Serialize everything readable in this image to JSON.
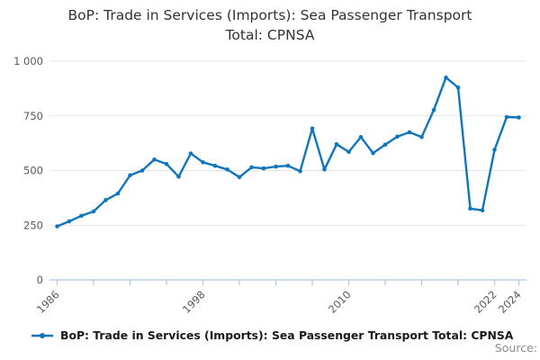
{
  "title": {
    "line1": "BoP: Trade in Services (Imports): Sea Passenger Transport",
    "line2": "Total: CPNSA"
  },
  "legend": {
    "label": "BoP: Trade in Services (Imports): Sea Passenger Transport Total: CPNSA"
  },
  "source_label": "Source:",
  "colors": {
    "series": "#1076bc",
    "axis": "#b4c3d6",
    "grid": "#e4e4e4",
    "tick_text": "#595959",
    "title_text": "#333333",
    "legend_text": "#1a1a1a",
    "source_text": "#8c8c8c"
  },
  "chart_data": {
    "type": "line",
    "title": "BoP: Trade in Services (Imports): Sea Passenger Transport Total: CPNSA",
    "xlabel": "",
    "ylabel": "",
    "x": [
      1986,
      1987,
      1988,
      1989,
      1990,
      1991,
      1992,
      1993,
      1994,
      1995,
      1996,
      1997,
      1998,
      1999,
      2000,
      2001,
      2002,
      2003,
      2004,
      2005,
      2006,
      2007,
      2008,
      2009,
      2010,
      2011,
      2012,
      2013,
      2014,
      2015,
      2016,
      2017,
      2018,
      2019,
      2020,
      2021,
      2022,
      2023,
      2024
    ],
    "series": [
      {
        "name": "BoP: Trade in Services (Imports): Sea Passenger Transport Total: CPNSA",
        "values": [
          245,
          268,
          293,
          313,
          365,
          395,
          478,
          500,
          550,
          530,
          472,
          578,
          538,
          522,
          505,
          470,
          515,
          510,
          518,
          522,
          497,
          692,
          505,
          620,
          585,
          653,
          580,
          618,
          655,
          675,
          653,
          777,
          925,
          880,
          326,
          318,
          595,
          745,
          743
        ]
      }
    ],
    "xlim": [
      1986,
      2024
    ],
    "ylim": [
      0,
      1000
    ],
    "yticks": [
      0,
      250,
      500,
      750,
      1000
    ],
    "ytick_labels": [
      "0",
      "250",
      "500",
      "750",
      "1 000"
    ],
    "xticks": [
      1986,
      1989,
      1992,
      1995,
      1998,
      2001,
      2004,
      2007,
      2010,
      2013,
      2016,
      2019,
      2022,
      2024
    ],
    "xtick_labeled": [
      1986,
      1998,
      2010,
      2022,
      2024
    ],
    "grid": "horizontal",
    "legend_position": "bottom-left",
    "marker": "circle"
  }
}
